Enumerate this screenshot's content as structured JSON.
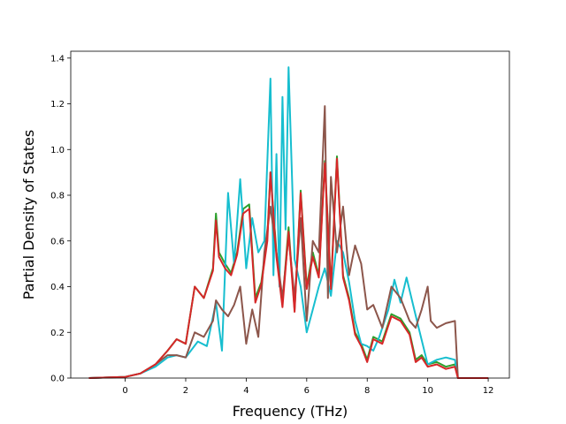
{
  "chart_data": {
    "type": "line",
    "title": "",
    "xlabel": "Frequency (THz)",
    "ylabel": "Partial Density of States",
    "xlim": [
      -1.8,
      12.7
    ],
    "ylim": [
      0,
      1.43
    ],
    "xticks": [
      0,
      2,
      4,
      6,
      8,
      10,
      12
    ],
    "yticks": [
      0.0,
      0.2,
      0.4,
      0.6,
      0.8,
      1.0,
      1.2,
      1.4
    ],
    "xtick_labels": [
      "0",
      "2",
      "4",
      "6",
      "8",
      "10",
      "12"
    ],
    "ytick_labels": [
      "0.0",
      "0.2",
      "0.4",
      "0.6",
      "0.8",
      "1.0",
      "1.2",
      "1.4"
    ],
    "grid": false,
    "legend": false,
    "series": [
      {
        "color": "#2ca02c",
        "x": [
          -1.2,
          0.0,
          0.5,
          1.0,
          1.4,
          1.7,
          2.0,
          2.3,
          2.6,
          2.9,
          3.0,
          3.1,
          3.3,
          3.5,
          3.7,
          3.9,
          4.1,
          4.3,
          4.5,
          4.7,
          4.8,
          5.0,
          5.2,
          5.4,
          5.6,
          5.8,
          6.0,
          6.2,
          6.4,
          6.6,
          6.8,
          7.0,
          7.2,
          7.4,
          7.6,
          7.8,
          8.0,
          8.2,
          8.5,
          8.8,
          9.1,
          9.4,
          9.6,
          9.8,
          10.0,
          10.3,
          10.6,
          10.9,
          11.0,
          12.0
        ],
        "y": [
          0,
          0.005,
          0.02,
          0.06,
          0.12,
          0.17,
          0.15,
          0.4,
          0.35,
          0.48,
          0.72,
          0.55,
          0.5,
          0.46,
          0.55,
          0.74,
          0.76,
          0.35,
          0.42,
          0.62,
          0.9,
          0.55,
          0.33,
          0.66,
          0.3,
          0.82,
          0.4,
          0.55,
          0.45,
          0.95,
          0.4,
          0.97,
          0.45,
          0.35,
          0.2,
          0.15,
          0.08,
          0.18,
          0.16,
          0.28,
          0.26,
          0.2,
          0.08,
          0.1,
          0.06,
          0.07,
          0.05,
          0.06,
          0,
          0
        ]
      },
      {
        "color": "#17becf",
        "x": [
          -1.2,
          0.0,
          0.5,
          1.0,
          1.4,
          1.7,
          2.0,
          2.4,
          2.7,
          3.0,
          3.2,
          3.4,
          3.6,
          3.8,
          4.0,
          4.2,
          4.4,
          4.6,
          4.8,
          4.9,
          5.0,
          5.1,
          5.2,
          5.3,
          5.4,
          5.6,
          5.8,
          6.0,
          6.2,
          6.4,
          6.6,
          6.8,
          7.0,
          7.2,
          7.4,
          7.6,
          7.8,
          8.0,
          8.2,
          8.4,
          8.7,
          8.9,
          9.1,
          9.3,
          9.5,
          9.7,
          10.0,
          10.3,
          10.6,
          10.9,
          11.0,
          12.0
        ],
        "y": [
          0,
          0.005,
          0.02,
          0.05,
          0.09,
          0.1,
          0.09,
          0.16,
          0.14,
          0.33,
          0.12,
          0.81,
          0.5,
          0.87,
          0.48,
          0.7,
          0.55,
          0.6,
          1.31,
          0.45,
          0.98,
          0.4,
          1.23,
          0.65,
          1.36,
          0.52,
          0.4,
          0.2,
          0.3,
          0.4,
          0.48,
          0.36,
          0.6,
          0.55,
          0.42,
          0.25,
          0.15,
          0.14,
          0.12,
          0.18,
          0.3,
          0.43,
          0.33,
          0.44,
          0.33,
          0.22,
          0.06,
          0.08,
          0.09,
          0.08,
          0,
          0
        ]
      },
      {
        "color": "#8c564b",
        "x": [
          -1.2,
          0.0,
          0.5,
          1.0,
          1.4,
          1.7,
          2.0,
          2.3,
          2.6,
          2.9,
          3.0,
          3.2,
          3.4,
          3.6,
          3.8,
          4.0,
          4.2,
          4.4,
          4.6,
          4.8,
          5.0,
          5.2,
          5.4,
          5.6,
          5.8,
          6.0,
          6.2,
          6.4,
          6.6,
          6.7,
          6.8,
          7.0,
          7.2,
          7.4,
          7.6,
          7.8,
          8.0,
          8.2,
          8.5,
          8.8,
          9.1,
          9.4,
          9.6,
          9.8,
          10.0,
          10.1,
          10.3,
          10.6,
          10.9,
          11.0,
          12.0
        ],
        "y": [
          0,
          0.005,
          0.02,
          0.06,
          0.1,
          0.1,
          0.09,
          0.2,
          0.18,
          0.25,
          0.34,
          0.3,
          0.27,
          0.32,
          0.4,
          0.15,
          0.3,
          0.18,
          0.55,
          0.75,
          0.55,
          0.35,
          0.62,
          0.35,
          0.7,
          0.25,
          0.6,
          0.55,
          1.19,
          0.35,
          0.88,
          0.55,
          0.75,
          0.45,
          0.58,
          0.5,
          0.3,
          0.32,
          0.22,
          0.4,
          0.35,
          0.25,
          0.22,
          0.3,
          0.4,
          0.25,
          0.22,
          0.24,
          0.25,
          0,
          0
        ]
      },
      {
        "color": "#d62728",
        "x": [
          -1.2,
          0.0,
          0.5,
          1.0,
          1.4,
          1.7,
          2.0,
          2.3,
          2.6,
          2.9,
          3.0,
          3.1,
          3.3,
          3.5,
          3.7,
          3.9,
          4.1,
          4.3,
          4.5,
          4.7,
          4.8,
          5.0,
          5.2,
          5.4,
          5.6,
          5.8,
          6.0,
          6.2,
          6.4,
          6.6,
          6.8,
          7.0,
          7.2,
          7.4,
          7.6,
          7.8,
          8.0,
          8.2,
          8.5,
          8.8,
          9.1,
          9.4,
          9.6,
          9.8,
          10.0,
          10.3,
          10.6,
          10.9,
          11.0,
          12.0
        ],
        "y": [
          0,
          0.005,
          0.02,
          0.06,
          0.12,
          0.17,
          0.15,
          0.4,
          0.35,
          0.47,
          0.69,
          0.53,
          0.48,
          0.45,
          0.54,
          0.72,
          0.74,
          0.33,
          0.41,
          0.6,
          0.9,
          0.53,
          0.31,
          0.64,
          0.29,
          0.81,
          0.39,
          0.53,
          0.44,
          0.94,
          0.39,
          0.96,
          0.44,
          0.34,
          0.19,
          0.14,
          0.07,
          0.17,
          0.15,
          0.27,
          0.25,
          0.19,
          0.07,
          0.09,
          0.05,
          0.06,
          0.04,
          0.05,
          0,
          0
        ]
      }
    ]
  }
}
